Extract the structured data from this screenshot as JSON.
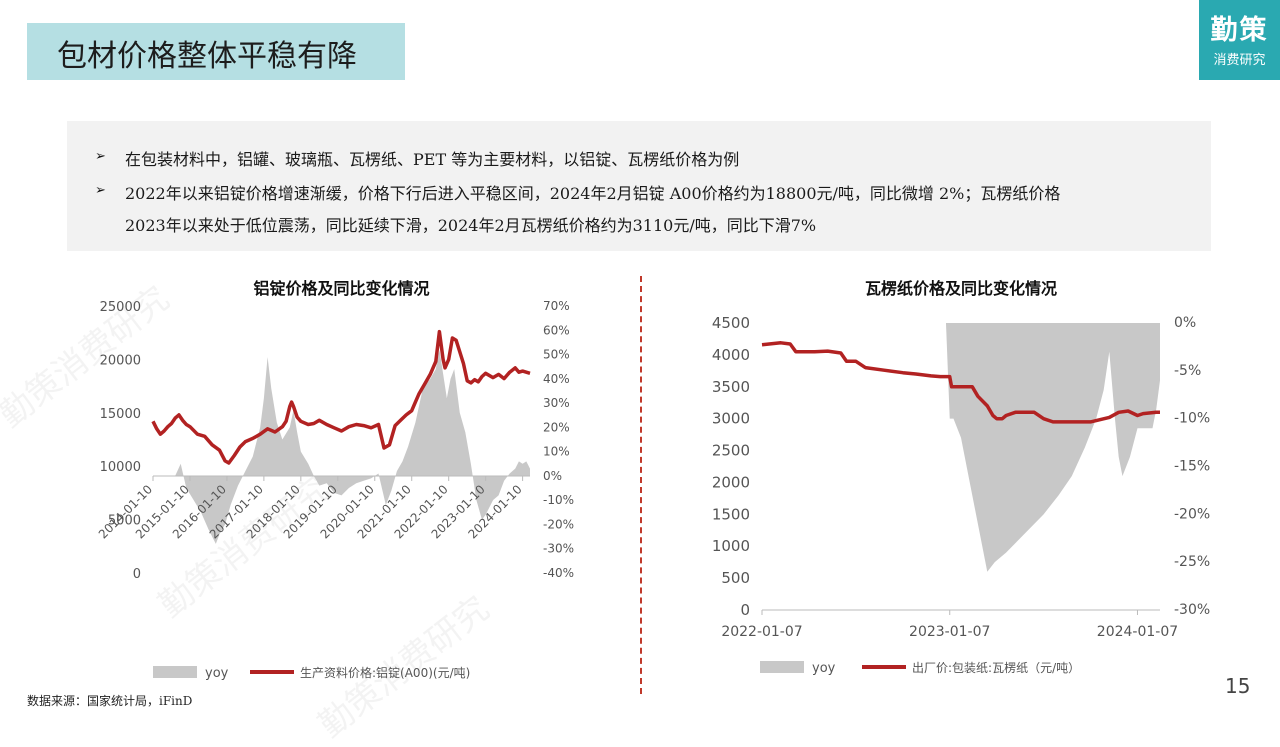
{
  "header": {
    "title": "包材价格整体平稳有降"
  },
  "logo": {
    "line1": "勤策",
    "line2": "消费研究",
    "bg_color": "#2aa9b1"
  },
  "bullets": [
    {
      "lines": [
        "在包装材料中，铝罐、玻璃瓶、瓦楞纸、PET 等为主要材料，以铝锭、瓦楞纸价格为例"
      ]
    },
    {
      "lines": [
        "2022年以来铝锭价格增速渐缓，价格下行后进入平稳区间，2024年2月铝锭 A00价格约为18800元/吨，同比微增 2%；瓦楞纸价格",
        "2023年以来处于低位震荡，同比延续下滑，2024年2月瓦楞纸价格约为3110元/吨，同比下滑7%"
      ]
    }
  ],
  "source": "数据来源：国家统计局，iFinD",
  "page_number": "15",
  "watermark": "勤策消费研究",
  "colors": {
    "price_line": "#b22222",
    "yoy_area": "#c8c8c8",
    "divider": "#c0392b"
  },
  "chart_data": [
    {
      "type": "area+line",
      "title": "铝锭价格及同比变化情况",
      "left_axis": {
        "ticks": [
          "0",
          "5000",
          "10000",
          "15000",
          "20000",
          "25000"
        ],
        "range": [
          0,
          25000
        ]
      },
      "right_axis": {
        "ticks": [
          "-40%",
          "-30%",
          "-20%",
          "-10%",
          "0%",
          "10%",
          "20%",
          "30%",
          "40%",
          "50%",
          "60%",
          "70%"
        ],
        "range": [
          -40,
          70
        ]
      },
      "x_ticks": [
        "2014-01-10",
        "2015-01-10",
        "2016-01-10",
        "2017-01-10",
        "2018-01-10",
        "2019-01-10",
        "2020-01-10",
        "2021-01-10",
        "2022-01-10",
        "2023-01-10",
        "2024-01-10"
      ],
      "x_range": [
        2014.0,
        2024.2
      ],
      "legend": [
        "yoy",
        "生产资料价格:铝锭(A00)(元/吨)"
      ],
      "series": [
        {
          "name": "生产资料价格:铝锭(A00)(元/吨)",
          "axis": "left",
          "points": [
            [
              2014.0,
              14200
            ],
            [
              2014.1,
              13500
            ],
            [
              2014.2,
              13000
            ],
            [
              2014.3,
              13300
            ],
            [
              2014.4,
              13700
            ],
            [
              2014.5,
              14000
            ],
            [
              2014.6,
              14500
            ],
            [
              2014.7,
              14800
            ],
            [
              2014.8,
              14300
            ],
            [
              2014.9,
              13900
            ],
            [
              2015.0,
              13700
            ],
            [
              2015.2,
              13000
            ],
            [
              2015.4,
              12800
            ],
            [
              2015.6,
              12000
            ],
            [
              2015.8,
              11500
            ],
            [
              2015.95,
              10500
            ],
            [
              2016.05,
              10300
            ],
            [
              2016.2,
              11000
            ],
            [
              2016.35,
              11800
            ],
            [
              2016.5,
              12300
            ],
            [
              2016.7,
              12600
            ],
            [
              2016.9,
              13000
            ],
            [
              2017.1,
              13500
            ],
            [
              2017.3,
              13200
            ],
            [
              2017.5,
              13700
            ],
            [
              2017.6,
              14200
            ],
            [
              2017.7,
              15600
            ],
            [
              2017.75,
              16000
            ],
            [
              2017.8,
              15600
            ],
            [
              2017.9,
              14600
            ],
            [
              2018.0,
              14200
            ],
            [
              2018.2,
              13900
            ],
            [
              2018.35,
              14000
            ],
            [
              2018.5,
              14300
            ],
            [
              2018.7,
              13900
            ],
            [
              2018.9,
              13600
            ],
            [
              2019.1,
              13300
            ],
            [
              2019.3,
              13700
            ],
            [
              2019.5,
              13900
            ],
            [
              2019.7,
              13800
            ],
            [
              2019.9,
              13600
            ],
            [
              2020.1,
              13900
            ],
            [
              2020.25,
              11700
            ],
            [
              2020.4,
              12000
            ],
            [
              2020.55,
              13800
            ],
            [
              2020.7,
              14300
            ],
            [
              2020.85,
              14800
            ],
            [
              2021.0,
              15200
            ],
            [
              2021.1,
              16000
            ],
            [
              2021.2,
              16800
            ],
            [
              2021.35,
              17700
            ],
            [
              2021.5,
              18600
            ],
            [
              2021.65,
              19800
            ],
            [
              2021.75,
              22600
            ],
            [
              2021.85,
              20000
            ],
            [
              2021.9,
              19200
            ],
            [
              2022.0,
              20000
            ],
            [
              2022.1,
              22000
            ],
            [
              2022.2,
              21800
            ],
            [
              2022.3,
              20700
            ],
            [
              2022.4,
              19600
            ],
            [
              2022.5,
              18000
            ],
            [
              2022.6,
              17800
            ],
            [
              2022.7,
              18100
            ],
            [
              2022.8,
              17900
            ],
            [
              2022.9,
              18400
            ],
            [
              2023.0,
              18700
            ],
            [
              2023.2,
              18300
            ],
            [
              2023.35,
              18600
            ],
            [
              2023.5,
              18200
            ],
            [
              2023.65,
              18800
            ],
            [
              2023.8,
              19200
            ],
            [
              2023.9,
              18800
            ],
            [
              2024.0,
              18900
            ],
            [
              2024.1,
              18800
            ],
            [
              2024.2,
              18700
            ]
          ]
        },
        {
          "name": "yoy",
          "axis": "right",
          "points": [
            [
              2014.0,
              0
            ],
            [
              2014.6,
              0
            ],
            [
              2014.75,
              5
            ],
            [
              2014.9,
              -5
            ],
            [
              2015.1,
              -10
            ],
            [
              2015.3,
              -15
            ],
            [
              2015.5,
              -22
            ],
            [
              2015.7,
              -28
            ],
            [
              2015.8,
              -24
            ],
            [
              2015.95,
              -20
            ],
            [
              2016.1,
              -12
            ],
            [
              2016.3,
              -4
            ],
            [
              2016.5,
              2
            ],
            [
              2016.7,
              8
            ],
            [
              2016.8,
              14
            ],
            [
              2016.9,
              20
            ],
            [
              2017.0,
              32
            ],
            [
              2017.1,
              49
            ],
            [
              2017.2,
              36
            ],
            [
              2017.35,
              22
            ],
            [
              2017.5,
              15
            ],
            [
              2017.7,
              20
            ],
            [
              2017.8,
              27
            ],
            [
              2017.9,
              18
            ],
            [
              2018.0,
              10
            ],
            [
              2018.2,
              5
            ],
            [
              2018.35,
              0
            ],
            [
              2018.5,
              -4
            ],
            [
              2018.7,
              -3
            ],
            [
              2018.9,
              -7
            ],
            [
              2019.1,
              -8
            ],
            [
              2019.3,
              -5
            ],
            [
              2019.5,
              -3
            ],
            [
              2019.7,
              -2
            ],
            [
              2019.9,
              -1
            ],
            [
              2020.1,
              1
            ],
            [
              2020.3,
              -12
            ],
            [
              2020.45,
              -6
            ],
            [
              2020.6,
              2
            ],
            [
              2020.75,
              6
            ],
            [
              2020.9,
              12
            ],
            [
              2021.1,
              22
            ],
            [
              2021.3,
              36
            ],
            [
              2021.5,
              40
            ],
            [
              2021.65,
              44
            ],
            [
              2021.75,
              52
            ],
            [
              2021.85,
              42
            ],
            [
              2021.95,
              32
            ],
            [
              2022.05,
              40
            ],
            [
              2022.15,
              44
            ],
            [
              2022.3,
              26
            ],
            [
              2022.45,
              18
            ],
            [
              2022.6,
              5
            ],
            [
              2022.75,
              -10
            ],
            [
              2022.9,
              -18
            ],
            [
              2023.0,
              -16
            ],
            [
              2023.2,
              -10
            ],
            [
              2023.35,
              -8
            ],
            [
              2023.5,
              -2
            ],
            [
              2023.65,
              1
            ],
            [
              2023.8,
              3
            ],
            [
              2023.9,
              6
            ],
            [
              2024.0,
              5
            ],
            [
              2024.1,
              6
            ],
            [
              2024.2,
              3
            ]
          ]
        }
      ]
    },
    {
      "type": "area+line",
      "title": "瓦楞纸价格及同比变化情况",
      "left_axis": {
        "ticks": [
          "0",
          "500",
          "1000",
          "1500",
          "2000",
          "2500",
          "3000",
          "3500",
          "4000",
          "4500"
        ],
        "range": [
          0,
          4500
        ]
      },
      "right_axis": {
        "ticks": [
          "0%",
          "-5%",
          "-10%",
          "-15%",
          "-20%",
          "-25%",
          "-30%"
        ],
        "range": [
          -30,
          0
        ]
      },
      "x_ticks": [
        "2022-01-07",
        "2023-01-07",
        "2024-01-07"
      ],
      "x_range": [
        2022.0,
        2024.12
      ],
      "legend": [
        "yoy",
        "出厂价:包装纸:瓦楞纸（元/吨）"
      ],
      "series": [
        {
          "name": "出厂价:包装纸:瓦楞纸（元/吨）",
          "axis": "left",
          "points": [
            [
              2022.0,
              4160
            ],
            [
              2022.1,
              4190
            ],
            [
              2022.15,
              4170
            ],
            [
              2022.18,
              4050
            ],
            [
              2022.28,
              4050
            ],
            [
              2022.35,
              4060
            ],
            [
              2022.42,
              4030
            ],
            [
              2022.45,
              3900
            ],
            [
              2022.5,
              3900
            ],
            [
              2022.55,
              3800
            ],
            [
              2022.65,
              3760
            ],
            [
              2022.75,
              3720
            ],
            [
              2022.82,
              3700
            ],
            [
              2022.9,
              3670
            ],
            [
              2022.95,
              3660
            ],
            [
              2023.0,
              3660
            ],
            [
              2023.01,
              3500
            ],
            [
              2023.12,
              3500
            ],
            [
              2023.15,
              3350
            ],
            [
              2023.2,
              3200
            ],
            [
              2023.23,
              3050
            ],
            [
              2023.25,
              3000
            ],
            [
              2023.28,
              3000
            ],
            [
              2023.3,
              3050
            ],
            [
              2023.35,
              3100
            ],
            [
              2023.45,
              3100
            ],
            [
              2023.5,
              3000
            ],
            [
              2023.55,
              2950
            ],
            [
              2023.6,
              2950
            ],
            [
              2023.75,
              2950
            ],
            [
              2023.85,
              3020
            ],
            [
              2023.9,
              3100
            ],
            [
              2023.95,
              3120
            ],
            [
              2024.0,
              3050
            ],
            [
              2024.03,
              3080
            ],
            [
              2024.1,
              3100
            ],
            [
              2024.12,
              3100
            ]
          ]
        },
        {
          "name": "yoy",
          "axis": "right",
          "points": [
            [
              2022.98,
              0
            ],
            [
              2023.0,
              -10
            ],
            [
              2023.02,
              -10
            ],
            [
              2023.06,
              -12
            ],
            [
              2023.12,
              -18
            ],
            [
              2023.18,
              -24
            ],
            [
              2023.2,
              -26
            ],
            [
              2023.24,
              -25
            ],
            [
              2023.3,
              -24
            ],
            [
              2023.4,
              -22
            ],
            [
              2023.5,
              -20
            ],
            [
              2023.58,
              -18
            ],
            [
              2023.65,
              -16
            ],
            [
              2023.72,
              -13
            ],
            [
              2023.78,
              -10
            ],
            [
              2023.82,
              -7
            ],
            [
              2023.85,
              -3
            ],
            [
              2023.88,
              -10
            ],
            [
              2023.9,
              -14
            ],
            [
              2023.92,
              -16
            ],
            [
              2023.96,
              -14
            ],
            [
              2024.0,
              -11
            ],
            [
              2024.04,
              -11
            ],
            [
              2024.08,
              -11
            ],
            [
              2024.1,
              -9
            ],
            [
              2024.12,
              -6
            ]
          ]
        }
      ]
    }
  ]
}
